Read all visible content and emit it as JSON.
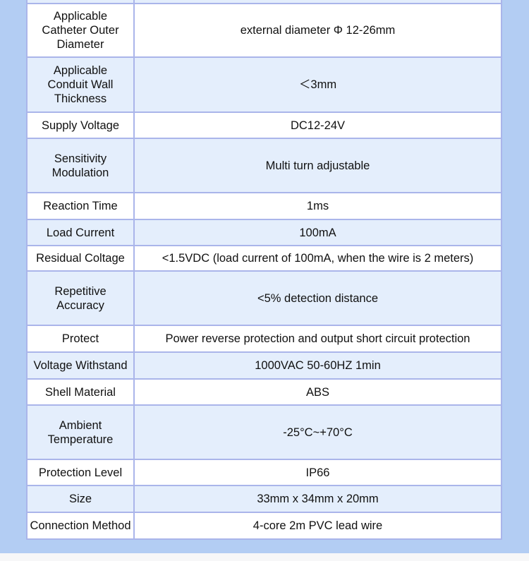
{
  "colors": {
    "background": "#b3cdf3",
    "row_alt": "#e4eefc",
    "border": "#aab5ea"
  },
  "specs": [
    {
      "label": "",
      "value": ""
    },
    {
      "label": "Applicable Catheter Outer Diameter",
      "value": "external diameter Φ 12-26mm"
    },
    {
      "label": "Applicable Conduit Wall Thickness",
      "value": "＜3mm"
    },
    {
      "label": "Supply Voltage",
      "value": "DC12-24V"
    },
    {
      "label": "Sensitivity Modulation",
      "value": "Multi turn adjustable"
    },
    {
      "label": "Reaction Time",
      "value": "1ms"
    },
    {
      "label": "Load Current",
      "value": "100mA"
    },
    {
      "label": "Residual Coltage",
      "value": "<1.5VDC (load current of 100mA, when the wire is 2 meters)"
    },
    {
      "label": "Repetitive Accuracy",
      "value": "<5% detection distance"
    },
    {
      "label": "Protect",
      "value": "Power reverse protection and output short circuit protection"
    },
    {
      "label": "Voltage Withstand",
      "value": "1000VAC 50-60HZ 1min"
    },
    {
      "label": "Shell Material",
      "value": "ABS"
    },
    {
      "label": "Ambient Temperature",
      "value": "-25°C~+70°C"
    },
    {
      "label": "Protection Level",
      "value": "IP66"
    },
    {
      "label": "Size",
      "value": "33mm x 34mm x 20mm"
    },
    {
      "label": "Connection Method",
      "value": "4-core 2m PVC lead wire"
    }
  ]
}
